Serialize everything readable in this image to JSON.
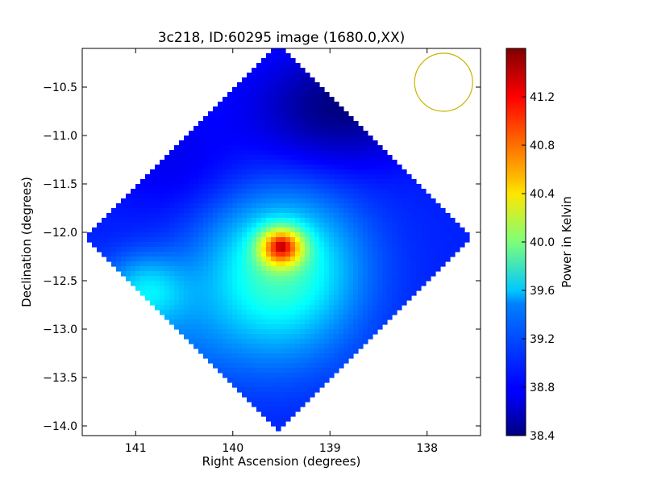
{
  "chart_data": {
    "type": "heatmap",
    "title": "3c218, ID:60295 image (1680.0,XX)",
    "xlabel": "Right Ascension (degrees)",
    "ylabel": "Declination (degrees)",
    "colorbar_label": "Power in Kelvin",
    "colormap": "jet",
    "xlim": [
      141.55,
      137.45
    ],
    "ylim": [
      -14.1,
      -10.1
    ],
    "x_ticks": [
      {
        "value": 141,
        "label": "141"
      },
      {
        "value": 140,
        "label": "140"
      },
      {
        "value": 139,
        "label": "139"
      },
      {
        "value": 138,
        "label": "138"
      }
    ],
    "y_ticks": [
      {
        "value": -10.5,
        "label": "−10.5"
      },
      {
        "value": -11.0,
        "label": "−11.0"
      },
      {
        "value": -11.5,
        "label": "−11.5"
      },
      {
        "value": -12.0,
        "label": "−12.0"
      },
      {
        "value": -12.5,
        "label": "−12.5"
      },
      {
        "value": -13.0,
        "label": "−13.0"
      },
      {
        "value": -13.5,
        "label": "−13.5"
      },
      {
        "value": -14.0,
        "label": "−14.0"
      }
    ],
    "color_range": [
      38.4,
      41.6
    ],
    "colorbar_ticks": [
      {
        "value": 38.4,
        "label": "38.4"
      },
      {
        "value": 38.8,
        "label": "38.8"
      },
      {
        "value": 39.2,
        "label": "39.2"
      },
      {
        "value": 39.6,
        "label": "39.6"
      },
      {
        "value": 40.0,
        "label": "40.0"
      },
      {
        "value": 40.4,
        "label": "40.4"
      },
      {
        "value": 40.8,
        "label": "40.8"
      },
      {
        "value": 41.2,
        "label": "41.2"
      }
    ],
    "image_region": {
      "center_ra": 139.55,
      "center_dec": -12.05,
      "half_diagonal_deg": 2.0
    },
    "background_level": 38.9,
    "sources": [
      {
        "ra": 139.5,
        "dec": -12.15,
        "peak": 41.6,
        "sigma_ra": 0.16,
        "sigma_dec": 0.14
      },
      {
        "ra": 139.5,
        "dec": -12.3,
        "peak": 40.3,
        "sigma_ra": 0.55,
        "sigma_dec": 0.5
      },
      {
        "ra": 139.6,
        "dec": -12.9,
        "peak": 39.4,
        "sigma_ra": 0.6,
        "sigma_dec": 0.5
      },
      {
        "ra": 140.9,
        "dec": -12.6,
        "peak": 39.9,
        "sigma_ra": 0.3,
        "sigma_dec": 0.25
      },
      {
        "ra": 140.8,
        "dec": -13.1,
        "peak": 39.2,
        "sigma_ra": 0.5,
        "sigma_dec": 0.4
      }
    ],
    "dark_regions": [
      {
        "ra": 138.9,
        "dec": -10.7,
        "depth": 0.5,
        "sigma_ra": 0.6,
        "sigma_dec": 0.4
      },
      {
        "ra": 140.6,
        "dec": -11.3,
        "depth": 0.15,
        "sigma_ra": 0.5,
        "sigma_dec": 0.4
      }
    ],
    "beam": {
      "ra": 137.83,
      "dec": -10.45,
      "radius_deg": 0.3,
      "color": "#c8b400"
    }
  }
}
